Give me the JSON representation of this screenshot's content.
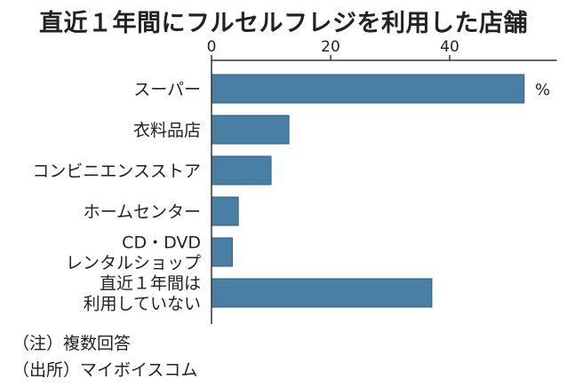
{
  "chart_data": {
    "type": "bar",
    "orientation": "horizontal",
    "title": "直近１年間にフルセルフレジを利用した店舗",
    "unit": "%",
    "categories": [
      [
        "スーパー"
      ],
      [
        "衣料品店"
      ],
      [
        "コンビニエンスストア"
      ],
      [
        "ホームセンター"
      ],
      [
        "CD・DVD",
        "レンタルショップ"
      ],
      [
        "直近１年間は",
        "利用していない"
      ]
    ],
    "values": [
      52.5,
      13,
      10,
      4.5,
      3.5,
      37
    ],
    "xlim": [
      0,
      58
    ],
    "xticks": [
      0,
      20,
      40
    ],
    "grid": false,
    "bar_color": "#4a7fa5"
  },
  "notes": [
    "（注）複数回答",
    "（出所）マイボイスコム"
  ]
}
